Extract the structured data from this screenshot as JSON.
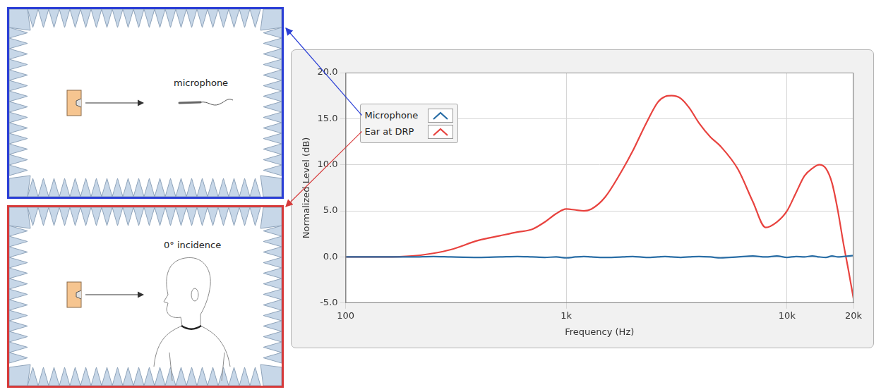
{
  "chart_data": {
    "type": "line",
    "x": [
      100,
      150,
      200,
      250,
      300,
      400,
      500,
      600,
      700,
      800,
      900,
      1000,
      1100,
      1200,
      1300,
      1500,
      1800,
      2000,
      2300,
      2600,
      2800,
      3000,
      3300,
      3600,
      4000,
      4500,
      5000,
      6000,
      7000,
      8000,
      9000,
      10000,
      11000,
      12000,
      13000,
      14000,
      15000,
      16000,
      17000,
      18000,
      19000,
      20000
    ],
    "series": [
      {
        "name": "Microphone",
        "color": "#2a6ea6",
        "values": [
          0,
          0,
          0,
          0.05,
          0,
          -0.05,
          0,
          0.05,
          0,
          -0.05,
          0,
          -0.1,
          0,
          0.05,
          0,
          -0.05,
          0,
          0.05,
          -0.05,
          0,
          0.05,
          0,
          -0.05,
          0,
          0.05,
          0,
          -0.1,
          0,
          0.1,
          0,
          0.1,
          -0.05,
          0.05,
          0,
          0.1,
          0,
          -0.05,
          0.1,
          0,
          0.05,
          0.1,
          0.15
        ]
      },
      {
        "name": "Ear at DRP",
        "color": "#e8433f",
        "values": [
          0,
          0,
          0.1,
          0.4,
          0.8,
          1.8,
          2.3,
          2.7,
          3.0,
          3.8,
          4.7,
          5.2,
          5.1,
          5.0,
          5.2,
          6.5,
          9.5,
          11.5,
          14.5,
          16.8,
          17.4,
          17.5,
          17.2,
          16.2,
          14.5,
          13.0,
          12.0,
          9.5,
          6.0,
          3.2,
          3.8,
          5.0,
          7.0,
          8.8,
          9.6,
          10.0,
          9.6,
          8.0,
          5.0,
          1.5,
          -1.5,
          -4.5
        ]
      }
    ],
    "xlabel": "Frequency (Hz)",
    "ylabel": "Normalized Level (dB)",
    "xlim": [
      100,
      20000
    ],
    "xticks": [
      100,
      {
        "value": 1000,
        "label": "1k"
      },
      {
        "value": 10000,
        "label": "10k"
      },
      {
        "value": 20000,
        "label": "20k"
      }
    ],
    "ylim": [
      -5,
      20
    ],
    "yticks": [
      {
        "value": -5,
        "label": "-5.0"
      },
      {
        "value": 0,
        "label": "0.0"
      },
      {
        "value": 5,
        "label": "5.0"
      },
      {
        "value": 10,
        "label": "10.0"
      },
      {
        "value": 15,
        "label": "15.0"
      },
      {
        "value": 20,
        "label": "20.0"
      }
    ],
    "log": "x",
    "grid": true,
    "legend": "upper left"
  },
  "diagram": {
    "panels": [
      {
        "label": "microphone",
        "color": "#2b3fd6"
      },
      {
        "label": "0° incidence",
        "color": "#d63a3a"
      }
    ]
  }
}
